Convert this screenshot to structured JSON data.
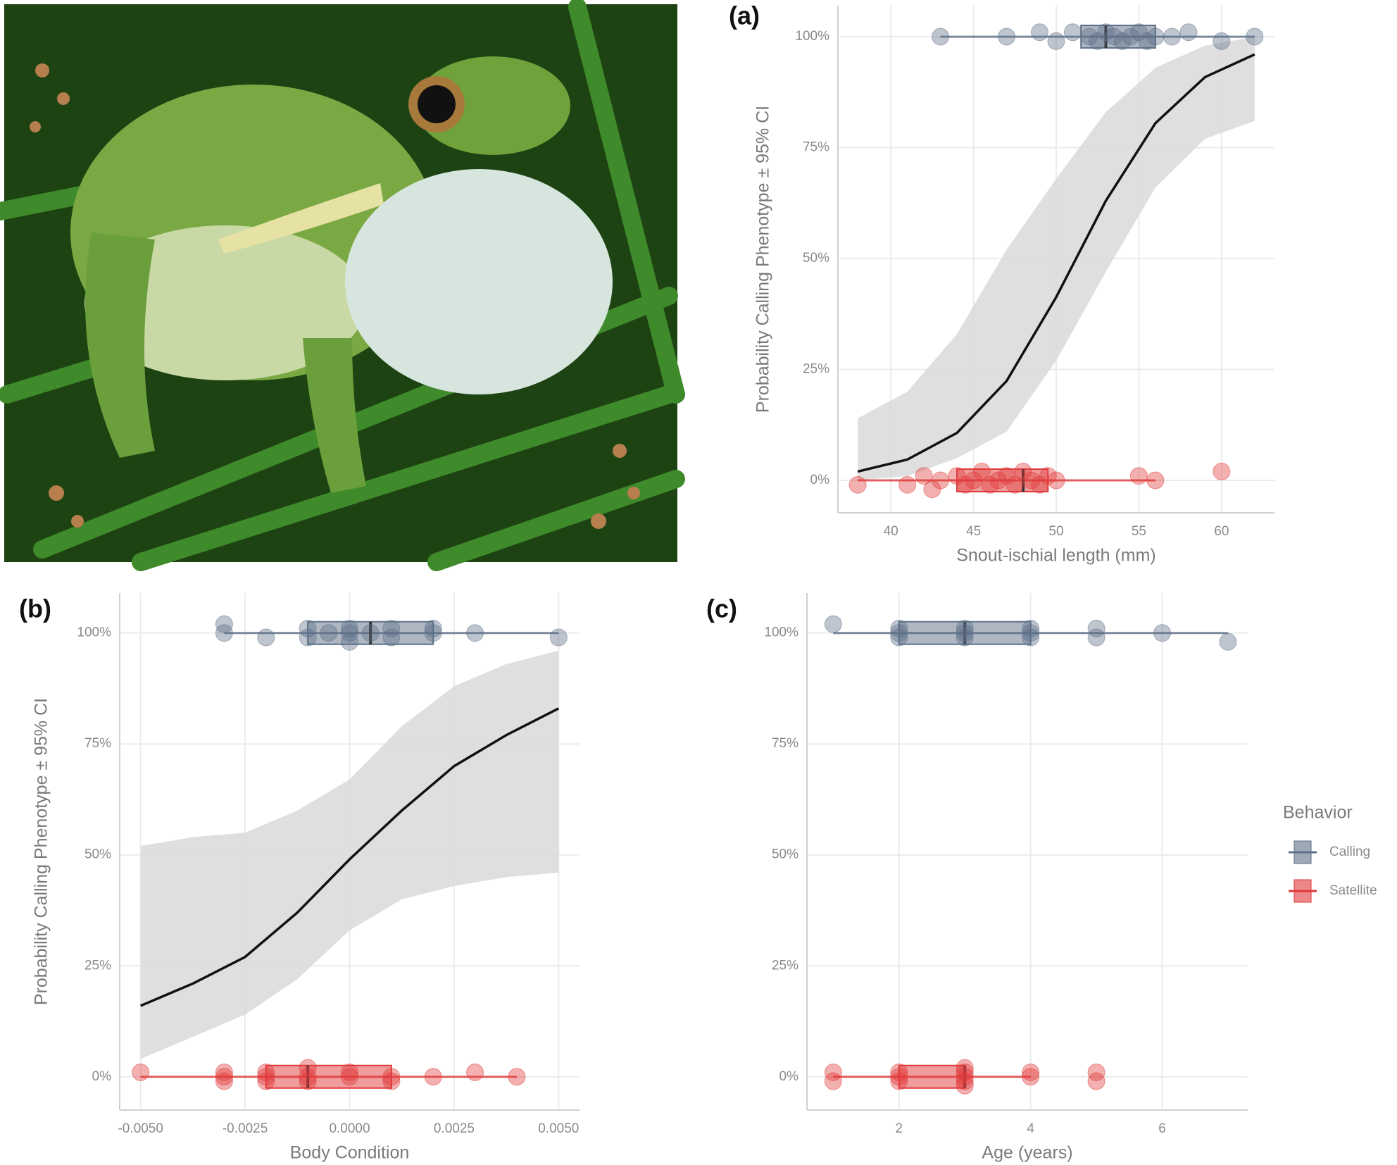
{
  "chart_data": [
    {
      "type": "logistic",
      "panel_label": "(a)",
      "x_label": "Snout-ischial length (mm)",
      "y_label": "Probability Calling Phenotype ± 95% CI",
      "xlim": [
        36.8,
        63.2
      ],
      "xticks": [
        40,
        45,
        50,
        55,
        60
      ],
      "ylim": [
        -7.3,
        107
      ],
      "yticks": [
        {
          "value": 0,
          "label": "0%"
        },
        {
          "value": 25,
          "label": "25%"
        },
        {
          "value": 50,
          "label": "50%"
        },
        {
          "value": 75,
          "label": "75%"
        },
        {
          "value": 100,
          "label": "100%"
        }
      ],
      "grid": true,
      "curve": {
        "x": [
          38,
          41,
          44,
          47,
          50,
          53,
          56,
          59,
          62
        ],
        "y": [
          2,
          4.7,
          10.7,
          22.4,
          41.3,
          63,
          80.5,
          90.9,
          96
        ],
        "lower": [
          0,
          1,
          5,
          11,
          27,
          47,
          66,
          77,
          81
        ],
        "upper": [
          14,
          20,
          33,
          52,
          68,
          83,
          93,
          98,
          100
        ]
      },
      "series": [
        {
          "name": "Calling",
          "color": "#5d6f86",
          "x": [
            43,
            47,
            49,
            50,
            51,
            52,
            52.5,
            53,
            53.5,
            54,
            54.5,
            55,
            55.5,
            56,
            57,
            58,
            60,
            62
          ],
          "y": [
            100,
            100,
            101,
            99,
            101,
            100,
            99,
            101,
            100,
            99,
            100,
            101,
            99,
            100,
            100,
            101,
            99,
            100
          ],
          "box": {
            "level": 100,
            "min": 43,
            "q1": 51.5,
            "median": 53,
            "q3": 56,
            "max": 62
          }
        },
        {
          "name": "Satellite",
          "color": "#e0393a",
          "x": [
            38,
            41,
            42,
            42.5,
            43,
            44,
            44.5,
            45,
            45.5,
            46,
            46.5,
            47,
            47.5,
            48,
            48.5,
            49,
            49.5,
            50,
            55,
            56,
            60
          ],
          "y": [
            -1,
            -1,
            1,
            -2,
            0,
            1,
            -1,
            0,
            2,
            -1,
            0,
            1,
            -1,
            2,
            0,
            -1,
            1,
            0,
            1,
            0,
            2
          ],
          "box": {
            "level": 0,
            "min": 38,
            "q1": 44,
            "median": 48,
            "q3": 49.5,
            "max": 56
          }
        }
      ]
    },
    {
      "type": "logistic",
      "panel_label": "(b)",
      "x_label": "Body Condition",
      "y_label": "Probability Calling Phenotype ± 95% CI",
      "xlim": [
        -0.0055,
        0.0055
      ],
      "xticks": [
        {
          "value": -0.005,
          "label": "-0.0050"
        },
        {
          "value": -0.0025,
          "label": "-0.0025"
        },
        {
          "value": 0,
          "label": "0.0000"
        },
        {
          "value": 0.0025,
          "label": "0.0025"
        },
        {
          "value": 0.005,
          "label": "0.0050"
        }
      ],
      "ylim": [
        -7.5,
        109
      ],
      "yticks": [
        {
          "value": 0,
          "label": "0%"
        },
        {
          "value": 25,
          "label": "25%"
        },
        {
          "value": 50,
          "label": "50%"
        },
        {
          "value": 75,
          "label": "75%"
        },
        {
          "value": 100,
          "label": "100%"
        }
      ],
      "grid": true,
      "curve": {
        "x": [
          -0.005,
          -0.00375,
          -0.0025,
          -0.00125,
          0,
          0.00125,
          0.0025,
          0.00375,
          0.005
        ],
        "y": [
          16,
          21,
          27,
          37,
          49,
          60,
          70,
          77,
          83
        ],
        "lower": [
          4,
          9,
          14,
          22,
          33,
          40,
          43,
          45,
          46
        ],
        "upper": [
          52,
          54,
          55,
          60,
          67,
          79,
          88,
          93,
          96
        ]
      },
      "series": [
        {
          "name": "Calling",
          "color": "#5d6f86",
          "x": [
            -0.003,
            -0.003,
            -0.002,
            -0.001,
            -0.001,
            -0.0005,
            0,
            0,
            0,
            0.0005,
            0.001,
            0.001,
            0.002,
            0.002,
            0.003,
            0.005
          ],
          "y": [
            102,
            100,
            99,
            101,
            99,
            100,
            101,
            98,
            100,
            100,
            101,
            99,
            101,
            100,
            100,
            99
          ],
          "box": {
            "level": 100,
            "min": -0.003,
            "q1": -0.001,
            "median": 0.0005,
            "q3": 0.002,
            "max": 0.005
          }
        },
        {
          "name": "Satellite",
          "color": "#e0393a",
          "x": [
            -0.005,
            -0.003,
            -0.003,
            -0.003,
            -0.002,
            -0.002,
            -0.002,
            -0.001,
            -0.001,
            -0.001,
            0,
            0,
            0.001,
            0.001,
            0.002,
            0.003,
            0.004
          ],
          "y": [
            1,
            1,
            -1,
            0,
            1,
            -1,
            0,
            2,
            0,
            -1,
            1,
            0,
            0,
            -1,
            0,
            1,
            0
          ],
          "box": {
            "level": 0,
            "min": -0.005,
            "q1": -0.002,
            "median": -0.001,
            "q3": 0.001,
            "max": 0.004
          }
        }
      ]
    },
    {
      "type": "box",
      "panel_label": "(c)",
      "x_label": "Age (years)",
      "xlim": [
        0.6,
        7.3
      ],
      "xticks": [
        2,
        4,
        6
      ],
      "ylim": [
        -7.5,
        109
      ],
      "yticks": [
        {
          "value": 0,
          "label": "0%"
        },
        {
          "value": 25,
          "label": "25%"
        },
        {
          "value": 50,
          "label": "50%"
        },
        {
          "value": 75,
          "label": "75%"
        },
        {
          "value": 100,
          "label": "100%"
        }
      ],
      "grid": true,
      "legend": "right",
      "legend_title": "Behavior",
      "series": [
        {
          "name": "Calling",
          "color": "#5d6f86",
          "x": [
            1,
            2,
            2,
            2,
            3,
            3,
            3,
            4,
            4,
            4,
            5,
            5,
            6,
            7
          ],
          "y": [
            102,
            101,
            99,
            100,
            100,
            101,
            99,
            101,
            100,
            99,
            101,
            99,
            100,
            98
          ],
          "box": {
            "level": 100,
            "min": 1,
            "q1": 2,
            "median": 3,
            "q3": 4,
            "max": 7
          }
        },
        {
          "name": "Satellite",
          "color": "#e0393a",
          "x": [
            1,
            1,
            2,
            2,
            2,
            3,
            3,
            3,
            3,
            3,
            4,
            4,
            5,
            5
          ],
          "y": [
            1,
            -1,
            0,
            1,
            -1,
            0,
            1,
            -1,
            2,
            -2,
            1,
            0,
            1,
            -1
          ],
          "box": {
            "level": 0,
            "min": 1,
            "q1": 2,
            "median": 3,
            "q3": 3,
            "max": 4
          }
        }
      ]
    }
  ]
}
